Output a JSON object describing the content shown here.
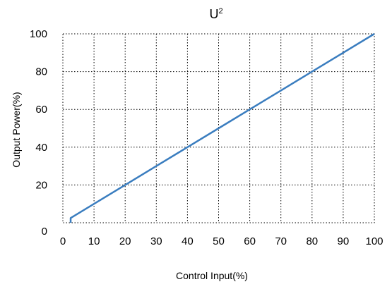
{
  "chart_data": {
    "type": "line",
    "title": "U",
    "title_superscript": "2",
    "xlabel": "Control Input(%)",
    "ylabel": "Output Power(%)",
    "xlim": [
      0,
      100
    ],
    "ylim": [
      0,
      100
    ],
    "xticks": [
      0,
      10,
      20,
      30,
      40,
      50,
      60,
      70,
      80,
      90,
      100
    ],
    "yticks": [
      0,
      20,
      40,
      60,
      80,
      100
    ],
    "grid": true,
    "grid_style": "dotted",
    "series": [
      {
        "color": "#3a7dbf",
        "x": [
          2.5,
          2.5,
          10,
          20,
          30,
          40,
          50,
          60,
          70,
          80,
          90,
          100
        ],
        "y": [
          0,
          2.5,
          10,
          20,
          30,
          40,
          50,
          60,
          70,
          80,
          90,
          100
        ]
      }
    ]
  }
}
